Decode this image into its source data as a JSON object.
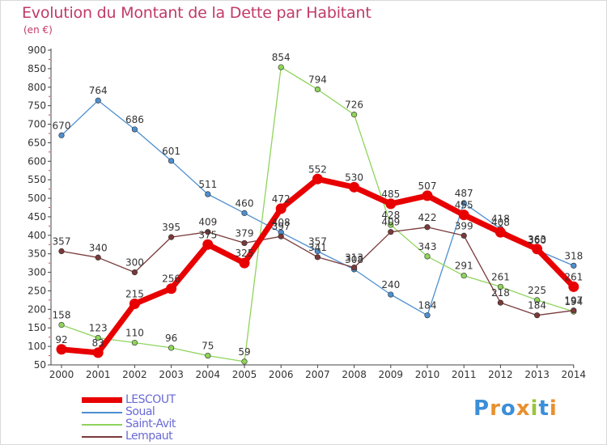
{
  "title": "Evolution du Montant de la Dette par Habitant",
  "subtitle": "(en €)",
  "logo": {
    "text": "Proxiti",
    "letters": [
      "P",
      "r",
      "o",
      "x",
      "i",
      "t",
      "i"
    ],
    "colors": [
      "#3b8fd8",
      "#e8902e",
      "#3b8fd8",
      "#e8902e",
      "#9ac43c",
      "#3b8fd8",
      "#e8902e"
    ]
  },
  "chart_data": {
    "type": "line",
    "x": [
      2000,
      2001,
      2002,
      2003,
      2004,
      2005,
      2006,
      2007,
      2008,
      2009,
      2010,
      2011,
      2012,
      2013,
      2014
    ],
    "ylim": [
      50,
      900
    ],
    "yticks": [
      50,
      100,
      150,
      200,
      250,
      300,
      350,
      400,
      450,
      500,
      550,
      600,
      650,
      700,
      750,
      800,
      850,
      900
    ],
    "grid": false,
    "legend_position": "bottom-left",
    "series": [
      {
        "name": "Soual",
        "color": "#4d8fcf",
        "values": [
          670,
          764,
          686,
          601,
          511,
          460,
          408,
          357,
          308,
          240,
          184,
          487,
          418,
          360,
          318
        ],
        "labels": [
          "670",
          "764",
          "686",
          "601",
          "511",
          "460",
          "408",
          "357",
          "308",
          "240",
          "184",
          "487",
          "418",
          "360",
          "318"
        ]
      },
      {
        "name": "Saint-Avit",
        "color": "#8fd45c",
        "values": [
          158,
          123,
          110,
          96,
          75,
          59,
          854,
          794,
          726,
          428,
          343,
          291,
          261,
          225,
          194
        ],
        "labels": [
          "158",
          "123",
          "110",
          "96",
          "75",
          "59",
          "854",
          "794",
          "726",
          "428",
          "343",
          "291",
          "261",
          "225",
          "194"
        ]
      },
      {
        "name": "Lempaut",
        "color": "#7a3a3a",
        "values": [
          357,
          340,
          300,
          395,
          409,
          379,
          397,
          341,
          313,
          409,
          422,
          399,
          218,
          184,
          197
        ],
        "labels": [
          "357",
          "340",
          "300",
          "395",
          "409",
          "379",
          "397",
          "341",
          "313",
          "409",
          "422",
          "399",
          "218",
          "184",
          "197"
        ]
      },
      {
        "name": "LESCOUT",
        "color": "#e80000",
        "values": [
          92,
          83,
          215,
          256,
          375,
          325,
          472,
          552,
          530,
          485,
          507,
          455,
          408,
          363,
          261
        ],
        "labels": [
          "92",
          "83",
          "215",
          "256",
          "375",
          "325",
          "472",
          "552",
          "530",
          "485",
          "507",
          "455",
          "408",
          "363",
          "261"
        ]
      }
    ]
  }
}
